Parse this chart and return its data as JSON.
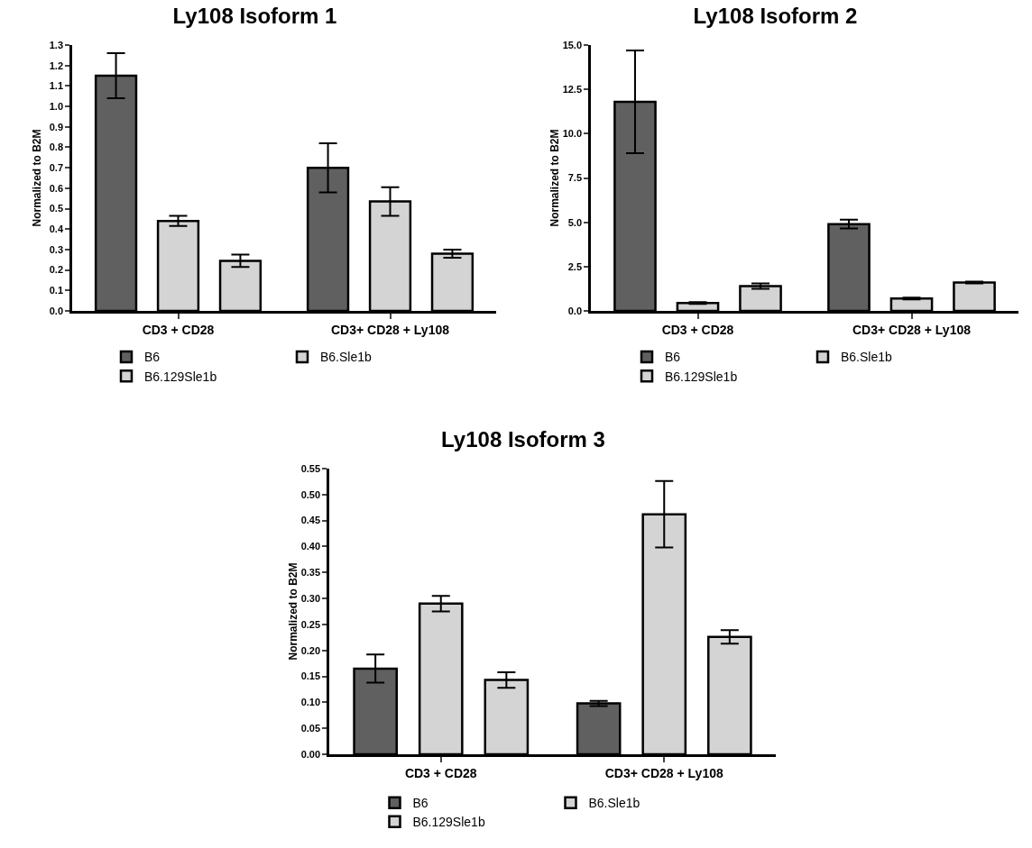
{
  "chart_data": [
    {
      "type": "bar",
      "title": "Ly108 Isoform 1",
      "ylabel": "Normalized to B2M",
      "categories": [
        "CD3 + CD28",
        "CD3+ CD28 + Ly108"
      ],
      "series": [
        {
          "name": "B6",
          "color": "#606060",
          "values": [
            1.15,
            0.7
          ],
          "errors": [
            0.11,
            0.12
          ]
        },
        {
          "name": "B6.Sle1b",
          "color": "#d4d4d4",
          "values": [
            0.44,
            0.535
          ],
          "errors": [
            0.025,
            0.07
          ]
        },
        {
          "name": "B6.129Sle1b",
          "color": "#d4d4d4",
          "values": [
            0.245,
            0.28
          ],
          "errors": [
            0.03,
            0.02
          ]
        }
      ],
      "ylim": [
        0,
        1.3
      ],
      "yticks": [
        {
          "value": 0,
          "label": "0.0"
        },
        0.1,
        0.2,
        0.3,
        0.4,
        0.5,
        0.6,
        0.7,
        0.8,
        0.9,
        {
          "value": 1,
          "label": "1.0"
        },
        1.1,
        1.2,
        1.3
      ],
      "grid": false,
      "legend": "bottom"
    },
    {
      "type": "bar",
      "title": "Ly108 Isoform 2",
      "ylabel": "Normalized to B2M",
      "categories": [
        "CD3 + CD28",
        "CD3+ CD28 + Ly108"
      ],
      "series": [
        {
          "name": "B6",
          "color": "#606060",
          "values": [
            11.8,
            4.9
          ],
          "errors": [
            2.9,
            0.25
          ]
        },
        {
          "name": "B6.Sle1b",
          "color": "#d4d4d4",
          "values": [
            0.45,
            0.7
          ],
          "errors": [
            0.05,
            0.05
          ]
        },
        {
          "name": "B6.129Sle1b",
          "color": "#d4d4d4",
          "values": [
            1.4,
            1.6
          ],
          "errors": [
            0.15,
            0.05
          ]
        }
      ],
      "ylim": [
        0,
        15
      ],
      "yticks": [
        {
          "value": 0,
          "label": "0.0"
        },
        2.5,
        {
          "value": 5,
          "label": "5.0"
        },
        7.5,
        {
          "value": 10,
          "label": "10.0"
        },
        12.5,
        {
          "value": 15,
          "label": "15.0"
        }
      ],
      "grid": false,
      "legend": "bottom"
    },
    {
      "type": "bar",
      "title": "Ly108 Isoform 3",
      "ylabel": "Normalized to B2M",
      "categories": [
        "CD3 + CD28",
        "CD3+ CD28 + Ly108"
      ],
      "series": [
        {
          "name": "B6",
          "color": "#606060",
          "values": [
            0.165,
            0.098
          ],
          "errors": [
            0.027,
            0.005
          ]
        },
        {
          "name": "B6.Sle1b",
          "color": "#d4d4d4",
          "values": [
            0.29,
            0.462
          ],
          "errors": [
            0.015,
            0.064
          ]
        },
        {
          "name": "B6.129Sle1b",
          "color": "#d4d4d4",
          "values": [
            0.143,
            0.226
          ],
          "errors": [
            0.015,
            0.013
          ]
        }
      ],
      "ylim": [
        0,
        0.55
      ],
      "yticks": [
        {
          "value": 0,
          "label": "0.00"
        },
        0.05,
        {
          "value": 0.1,
          "label": "0.10"
        },
        0.15,
        {
          "value": 0.2,
          "label": "0.20"
        },
        0.25,
        {
          "value": 0.3,
          "label": "0.30"
        },
        0.35,
        {
          "value": 0.4,
          "label": "0.40"
        },
        0.45,
        {
          "value": 0.5,
          "label": "0.50"
        },
        0.55
      ],
      "grid": false,
      "legend": "bottom"
    }
  ]
}
